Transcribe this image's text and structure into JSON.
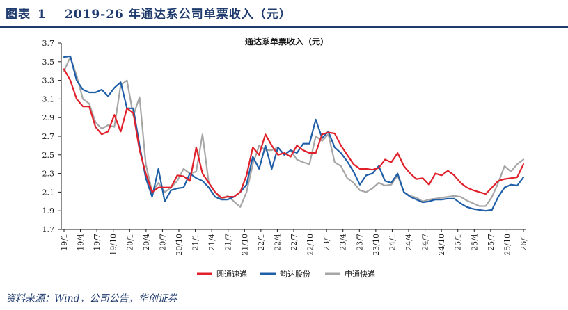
{
  "figure": {
    "label": "图表",
    "number": "1",
    "title": "2019-26 年通达系公司单票收入（元）"
  },
  "source": "资料来源：Wind，公司公告，华创证券",
  "chart_data": {
    "type": "line",
    "title": "通达系单票收入（元）",
    "xlabel": "",
    "ylabel": "",
    "ylim": [
      1.7,
      3.7
    ],
    "yticks": [
      1.7,
      1.9,
      2.1,
      2.3,
      2.5,
      2.7,
      2.9,
      3.1,
      3.3,
      3.5,
      3.7
    ],
    "x_tick_labels": [
      "19/1",
      "19/4",
      "19/7",
      "19/10",
      "20/1",
      "20/4",
      "20/7",
      "20/10",
      "21/1",
      "21/4",
      "21/7",
      "21/10",
      "22/1",
      "22/4",
      "22/7",
      "22/10",
      "23/1",
      "23/4",
      "23/7",
      "23/10",
      "24/1",
      "24/4",
      "24/7",
      "24/10",
      "25/1",
      "25/4",
      "25/7",
      "25/10",
      "26/1"
    ],
    "grid": false,
    "legend_position": "bottom",
    "series": [
      {
        "name": "圆通速递",
        "color": "#e0202a",
        "values": [
          3.42,
          3.3,
          3.1,
          3.02,
          3.02,
          2.8,
          2.72,
          2.75,
          2.93,
          2.75,
          3.0,
          2.95,
          2.55,
          2.3,
          2.1,
          2.15,
          2.15,
          2.15,
          2.28,
          2.27,
          2.22,
          2.58,
          2.3,
          2.2,
          2.1,
          2.04,
          2.05,
          2.05,
          2.1,
          2.28,
          2.58,
          2.5,
          2.72,
          2.6,
          2.5,
          2.52,
          2.48,
          2.6,
          2.55,
          2.52,
          2.52,
          2.72,
          2.74,
          2.73,
          2.6,
          2.5,
          2.4,
          2.35,
          2.35,
          2.34,
          2.36,
          2.45,
          2.42,
          2.52,
          2.38,
          2.3,
          2.24,
          2.25,
          2.18,
          2.3,
          2.28,
          2.33,
          2.28,
          2.2,
          2.15,
          2.12,
          2.1,
          2.08,
          2.15,
          2.22,
          2.24,
          2.25,
          2.26,
          2.4
        ]
      },
      {
        "name": "韵达股份",
        "color": "#1f5fa8",
        "values": [
          3.55,
          3.56,
          3.3,
          3.2,
          3.17,
          3.17,
          3.2,
          3.13,
          3.22,
          3.28,
          3.0,
          3.0,
          2.6,
          2.25,
          2.05,
          2.35,
          2.0,
          2.12,
          2.14,
          2.15,
          2.3,
          2.25,
          2.22,
          2.15,
          2.05,
          2.02,
          2.02,
          2.05,
          2.1,
          2.18,
          2.48,
          2.35,
          2.6,
          2.35,
          2.58,
          2.5,
          2.55,
          2.52,
          2.62,
          2.62,
          2.88,
          2.68,
          2.75,
          2.58,
          2.52,
          2.43,
          2.32,
          2.18,
          2.28,
          2.3,
          2.38,
          2.22,
          2.2,
          2.3,
          2.1,
          2.05,
          2.02,
          1.99,
          2.0,
          2.02,
          2.02,
          2.03,
          2.03,
          1.98,
          1.94,
          1.92,
          1.91,
          1.9,
          1.91,
          2.05,
          2.15,
          2.18,
          2.17,
          2.26
        ]
      },
      {
        "name": "申通快递",
        "color": "#a6a6a6",
        "values": [
          3.4,
          3.55,
          3.35,
          3.1,
          3.05,
          2.85,
          2.78,
          2.82,
          2.8,
          3.25,
          3.3,
          2.92,
          3.12,
          2.4,
          2.1,
          2.2,
          2.1,
          2.15,
          2.22,
          2.35,
          2.3,
          2.32,
          2.72,
          2.2,
          2.1,
          2.02,
          2.06,
          2.0,
          1.94,
          2.1,
          2.4,
          2.6,
          2.55,
          2.55,
          2.58,
          2.5,
          2.55,
          2.45,
          2.42,
          2.4,
          2.7,
          2.65,
          2.72,
          2.42,
          2.38,
          2.25,
          2.2,
          2.12,
          2.1,
          2.14,
          2.2,
          2.17,
          2.18,
          2.28,
          2.1,
          2.06,
          2.04,
          2.0,
          2.02,
          2.03,
          2.04,
          2.05,
          2.06,
          2.05,
          2.01,
          1.98,
          1.95,
          1.95,
          2.05,
          2.2,
          2.38,
          2.32,
          2.4,
          2.45
        ]
      }
    ]
  }
}
